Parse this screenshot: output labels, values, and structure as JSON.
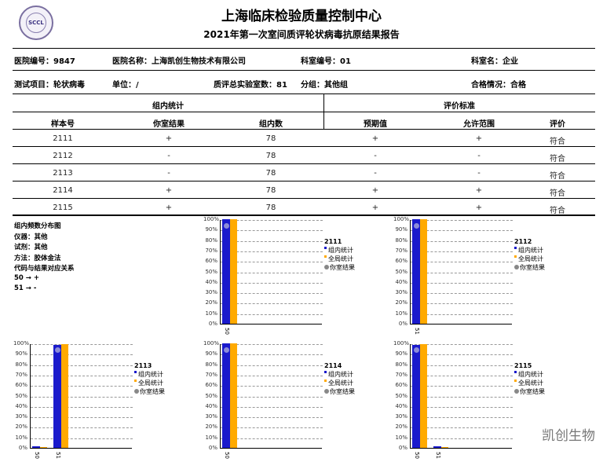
{
  "header": {
    "title": "上海临床检验质量控制中心",
    "subtitle": "2021年第一次室间质评轮状病毒抗原结果报告",
    "logo_text": "SCCL"
  },
  "info": {
    "hospital_id": "医院编号：9847",
    "hospital_name": "医院名称：上海凯创生物技术有限公司",
    "dept_id": "科室编号：01",
    "dept_name": "科室名：企业",
    "test_item": "测试项目：轮状病毒",
    "unit": "单位：/",
    "total_labs": "质评总实验室数：81",
    "group": "分组：其他组",
    "qualified": "合格情况：合格"
  },
  "table": {
    "group_headers": [
      "组内统计",
      "评价标准"
    ],
    "columns": [
      "样本号",
      "你室结果",
      "组内数",
      "预期值",
      "允许范围",
      "评价"
    ],
    "rows": [
      [
        "2111",
        "+",
        "78",
        "+",
        "+",
        "符合"
      ],
      [
        "2112",
        "-",
        "78",
        "-",
        "-",
        "符合"
      ],
      [
        "2113",
        "-",
        "78",
        "-",
        "-",
        "符合"
      ],
      [
        "2114",
        "+",
        "78",
        "+",
        "+",
        "符合"
      ],
      [
        "2115",
        "+",
        "78",
        "+",
        "+",
        "符合"
      ]
    ]
  },
  "side": {
    "lines": [
      "组内频数分布图",
      "仪器：其他",
      "试剂：其他",
      "方法：胶体金法",
      "代码与结果对应关系",
      "50 → +",
      "51 → -"
    ]
  },
  "chart_data": [
    {
      "type": "bar",
      "title": "2111",
      "categories": [
        "50"
      ],
      "series": [
        {
          "name": "组内统计",
          "values": [
            100
          ],
          "color": "#1a1acc"
        },
        {
          "name": "全局统计",
          "values": [
            100
          ],
          "color": "#ffaa00"
        }
      ],
      "your_result": "50",
      "your_result_label": "你室结果",
      "yticks": [
        "0%",
        "10%",
        "20%",
        "30%",
        "40%",
        "50%",
        "60%",
        "70%",
        "80%",
        "90%",
        "100%"
      ],
      "ylim": [
        0,
        100
      ],
      "grid": true,
      "legend": "right"
    },
    {
      "type": "bar",
      "title": "2112",
      "categories": [
        "51"
      ],
      "series": [
        {
          "name": "组内统计",
          "values": [
            100
          ],
          "color": "#1a1acc"
        },
        {
          "name": "全局统计",
          "values": [
            100
          ],
          "color": "#ffaa00"
        }
      ],
      "your_result": "51",
      "your_result_label": "你室结果",
      "yticks": [
        "0%",
        "10%",
        "20%",
        "30%",
        "40%",
        "50%",
        "60%",
        "70%",
        "80%",
        "90%",
        "100%"
      ],
      "ylim": [
        0,
        100
      ],
      "grid": true,
      "legend": "right"
    },
    {
      "type": "bar",
      "title": "2113",
      "categories": [
        "50",
        "51"
      ],
      "series": [
        {
          "name": "组内统计",
          "values": [
            1.5,
            98.5
          ],
          "color": "#1a1acc"
        },
        {
          "name": "全局统计",
          "values": [
            1,
            99
          ],
          "color": "#ffaa00"
        }
      ],
      "your_result": "51",
      "your_result_label": "你室结果",
      "yticks": [
        "0%",
        "10%",
        "20%",
        "30%",
        "40%",
        "50%",
        "60%",
        "70%",
        "80%",
        "90%",
        "100%"
      ],
      "ylim": [
        0,
        100
      ],
      "grid": true,
      "legend": "right"
    },
    {
      "type": "bar",
      "title": "2114",
      "categories": [
        "50"
      ],
      "series": [
        {
          "name": "组内统计",
          "values": [
            100
          ],
          "color": "#1a1acc"
        },
        {
          "name": "全局统计",
          "values": [
            100
          ],
          "color": "#ffaa00"
        }
      ],
      "your_result": "50",
      "your_result_label": "你室结果",
      "yticks": [
        "0%",
        "10%",
        "20%",
        "30%",
        "40%",
        "50%",
        "60%",
        "70%",
        "80%",
        "90%",
        "100%"
      ],
      "ylim": [
        0,
        100
      ],
      "grid": true,
      "legend": "right"
    },
    {
      "type": "bar",
      "title": "2115",
      "categories": [
        "50",
        "51"
      ],
      "series": [
        {
          "name": "组内统计",
          "values": [
            98.5,
            1.5
          ],
          "color": "#1a1acc"
        },
        {
          "name": "全局统计",
          "values": [
            99,
            1
          ],
          "color": "#ffaa00"
        }
      ],
      "your_result": "50",
      "your_result_label": "你室结果",
      "yticks": [
        "0%",
        "10%",
        "20%",
        "30%",
        "40%",
        "50%",
        "60%",
        "70%",
        "80%",
        "90%",
        "100%"
      ],
      "ylim": [
        0,
        100
      ],
      "grid": true,
      "legend": "right"
    }
  ],
  "watermark": "凯创生物"
}
